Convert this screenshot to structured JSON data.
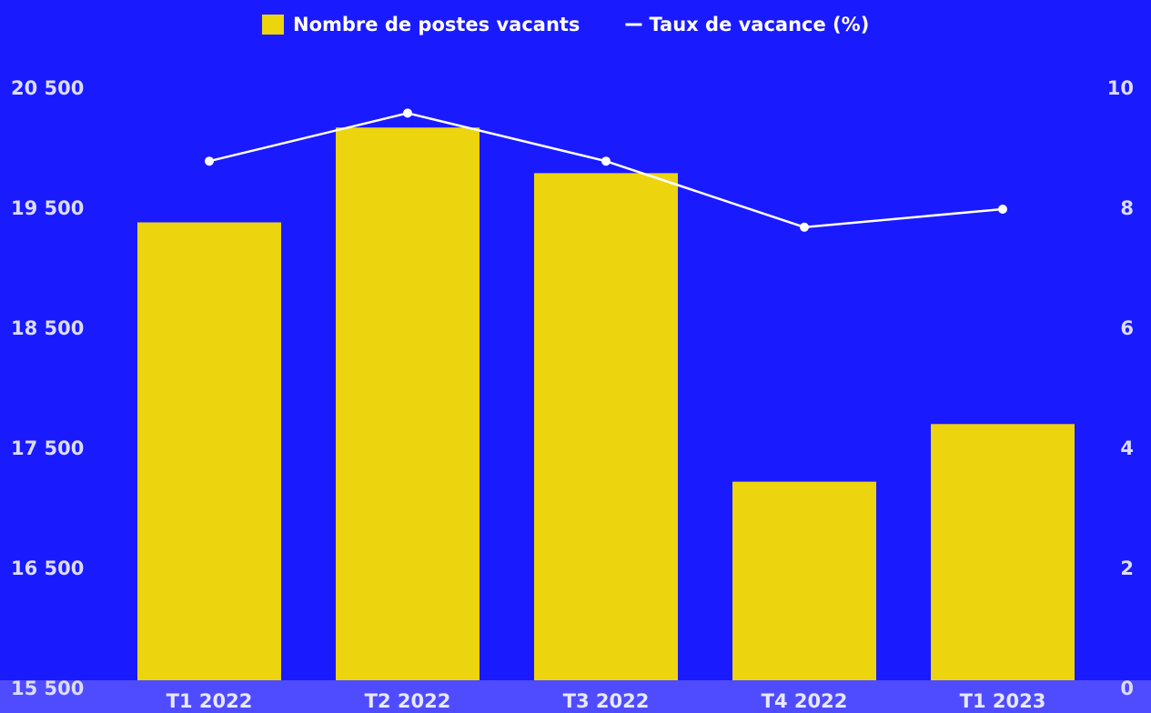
{
  "chart_data": {
    "type": "bar",
    "categories": [
      "T1 2022",
      "T2 2022",
      "T3 2022",
      "T4 2022",
      "T1 2023"
    ],
    "series": [
      {
        "name": "Nombre de postes vacants",
        "color": "#ecd40f",
        "type": "bar",
        "values": [
          19390,
          20180,
          19800,
          17230,
          17710
        ]
      },
      {
        "name": "Taux de vacance (%)",
        "color": "#ffffff",
        "type": "line",
        "axis": "y2",
        "values": [
          8.8,
          9.6,
          8.8,
          7.7,
          8.0
        ]
      }
    ],
    "ylim": [
      15500,
      20500
    ],
    "yticks": [
      {
        "value": 15500,
        "label": "15 500"
      },
      {
        "value": 16500,
        "label": "16 500"
      },
      {
        "value": 17500,
        "label": "17 500"
      },
      {
        "value": 18500,
        "label": "18 500"
      },
      {
        "value": 19500,
        "label": "19 500"
      },
      {
        "value": 20500,
        "label": "20 500"
      }
    ],
    "y2lim": [
      0,
      10
    ],
    "y2ticks": [
      0,
      2,
      4,
      6,
      8,
      10
    ],
    "legend": "top"
  }
}
